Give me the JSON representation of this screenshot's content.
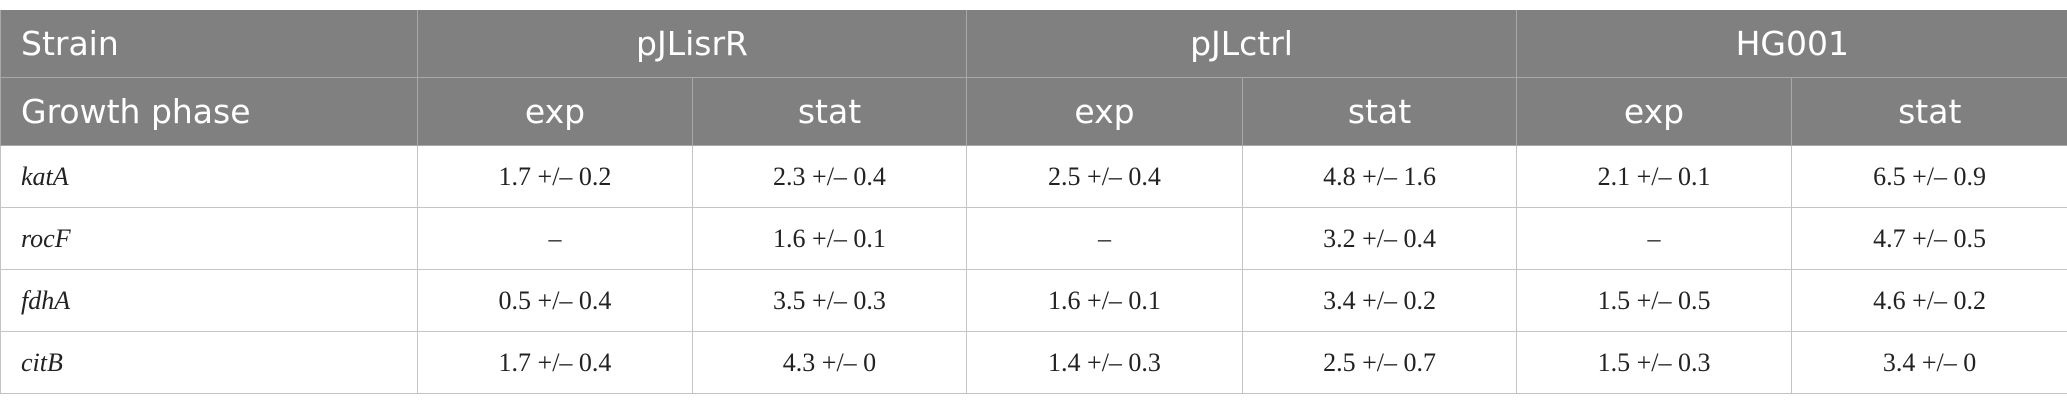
{
  "table": {
    "header": [
      [
        "Strain",
        "pJLisrR",
        "pJLctrl",
        "HG001"
      ],
      [
        "Growth phase",
        "exp",
        "stat",
        "exp",
        "stat",
        "exp",
        "stat"
      ]
    ],
    "rows": [
      [
        "katA",
        "1.7 +/– 0.2",
        "2.3 +/– 0.4",
        "2.5 +/– 0.4",
        "4.8 +/– 1.6",
        "2.1 +/– 0.1",
        "6.5 +/– 0.9"
      ],
      [
        "rocF",
        "–",
        "1.6 +/– 0.1",
        "–",
        "3.2 +/– 0.4",
        "–",
        "4.7 +/– 0.5"
      ],
      [
        "fdhA",
        "0.5 +/– 0.4",
        "3.5 +/– 0.3",
        "1.6 +/– 0.1",
        "3.4 +/– 0.2",
        "1.5 +/– 0.5",
        "4.6 +/– 0.2"
      ],
      [
        "citB",
        "1.7 +/– 0.4",
        "4.3 +/– 0",
        "1.4 +/– 0.3",
        "2.5 +/– 0.7",
        "1.5 +/– 0.3",
        "3.4 +/– 0"
      ]
    ]
  }
}
